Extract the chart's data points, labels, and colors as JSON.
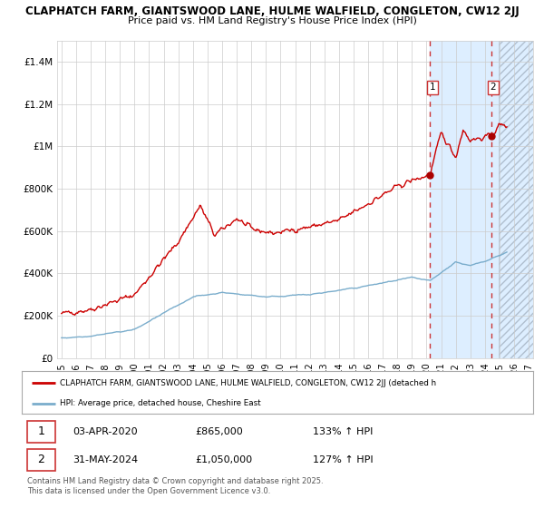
{
  "title_line1": "CLAPHATCH FARM, GIANTSWOOD LANE, HULME WALFIELD, CONGLETON, CW12 2JJ",
  "title_line2": "Price paid vs. HM Land Registry's House Price Index (HPI)",
  "ylabel_ticks": [
    "£0",
    "£200K",
    "£400K",
    "£600K",
    "£800K",
    "£1M",
    "£1.2M",
    "£1.4M"
  ],
  "ytick_values": [
    0,
    200000,
    400000,
    600000,
    800000,
    1000000,
    1200000,
    1400000
  ],
  "ylim": [
    0,
    1500000
  ],
  "xlim_start": 1994.7,
  "xlim_end": 2027.3,
  "red_line_color": "#cc0000",
  "blue_line_color": "#7aadcc",
  "vline_color": "#cc3333",
  "shade_color": "#ddeeff",
  "marker1_date": 2020.25,
  "marker1_value": 865000,
  "marker2_date": 2024.42,
  "marker2_value": 1050000,
  "label1_date": "03-APR-2020",
  "label1_price": "£865,000",
  "label1_hpi": "133% ↑ HPI",
  "label2_date": "31-MAY-2024",
  "label2_price": "£1,050,000",
  "label2_hpi": "127% ↑ HPI",
  "legend_line1": "CLAPHATCH FARM, GIANTSWOOD LANE, HULME WALFIELD, CONGLETON, CW12 2JJ (detached h",
  "legend_line2": "HPI: Average price, detached house, Cheshire East",
  "footer": "Contains HM Land Registry data © Crown copyright and database right 2025.\nThis data is licensed under the Open Government Licence v3.0.",
  "bg_color": "#ffffff",
  "grid_color": "#cccccc",
  "shade_start": 2020.25,
  "shade_end": 2024.92,
  "hatch_start": 2024.92,
  "hatch_end": 2027.3
}
